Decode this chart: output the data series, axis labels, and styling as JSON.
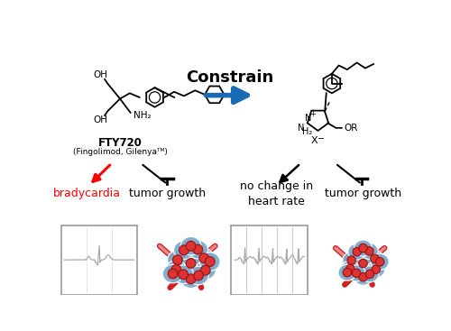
{
  "constrain_text": "Constrain",
  "fty720_label": "FTY720",
  "fty720_sublabel": "(Fingolimod, Gilenyaᵀᴹ)",
  "bradycardia_text": "bradycardia",
  "tumor_growth_text1": "tumor growth",
  "no_change_text": "no change in\nheart rate",
  "tumor_growth_text2": "tumor growth",
  "bradycardia_color": "#ff0000",
  "arrow_red": "#ff0000",
  "constrain_arrow_color": "#1a6bb5",
  "bg_color": "#ffffff",
  "ecg_color": "#aaaaaa",
  "tumor_blue": "#7aaacc",
  "tumor_blue_dark": "#5588aa",
  "tumor_red": "#dd3333",
  "vessel_red": "#cc2222",
  "vessel_pink": "#ee8888"
}
